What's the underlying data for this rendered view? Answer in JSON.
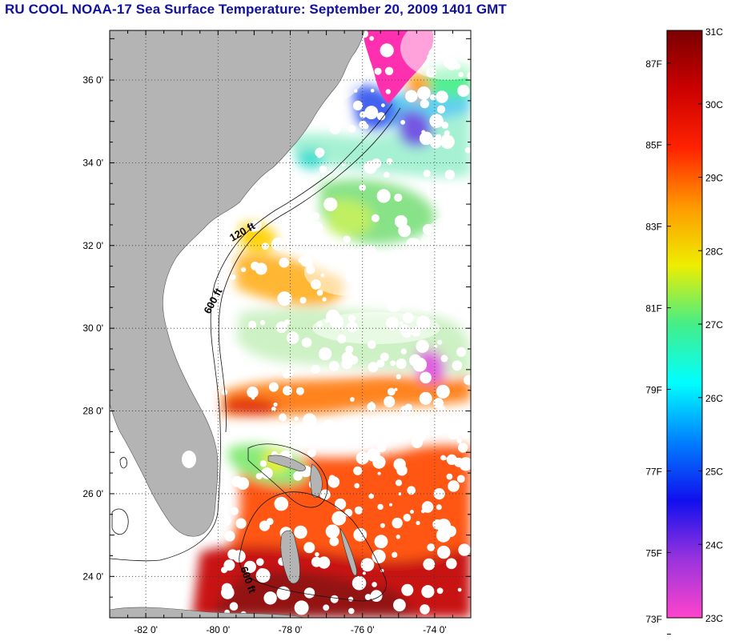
{
  "title": "RU COOL  NOAA-17  Sea Surface Temperature:  September 20, 2009 1401 GMT",
  "map": {
    "lat_labels": [
      {
        "deg": 36,
        "label": "36 0'"
      },
      {
        "deg": 34,
        "label": "34 0'"
      },
      {
        "deg": 32,
        "label": "32 0'"
      },
      {
        "deg": 30,
        "label": "30 0'"
      },
      {
        "deg": 28,
        "label": "28 0'"
      },
      {
        "deg": 26,
        "label": "26 0'"
      },
      {
        "deg": 24,
        "label": "24 0'"
      }
    ],
    "lon_labels": [
      {
        "deg": -82,
        "label": "-82 0'"
      },
      {
        "deg": -80,
        "label": "-80 0'"
      },
      {
        "deg": -78,
        "label": "-78 0'"
      },
      {
        "deg": -76,
        "label": "-76 0'"
      },
      {
        "deg": -74,
        "label": "-74 0'"
      }
    ],
    "lat_range": [
      23,
      37.2
    ],
    "lon_range": [
      -83,
      -73
    ],
    "contour_labels": {
      "isobath_120": "120 ft",
      "isobath_600": "600 ft",
      "isobath_bahamas": "600 ft"
    },
    "colors": {
      "land": "#b4b4b4",
      "cloud": "#ffffff"
    }
  },
  "colorbar": {
    "fahrenheit": [
      "87F",
      "85F",
      "83F",
      "81F",
      "79F",
      "77F",
      "75F",
      "73F"
    ],
    "celsius": [
      "31C",
      "30C",
      "29C",
      "28C",
      "27C",
      "26C",
      "25C",
      "24C",
      "23C"
    ],
    "range_c": [
      23,
      31
    ],
    "gradient": [
      "#ff44cc",
      "#9933dd",
      "#1010ee",
      "#0080ff",
      "#00ffff",
      "#44ee88",
      "#eeee00",
      "#ff9900",
      "#ff2200",
      "#cc0000",
      "#7a0000"
    ]
  }
}
